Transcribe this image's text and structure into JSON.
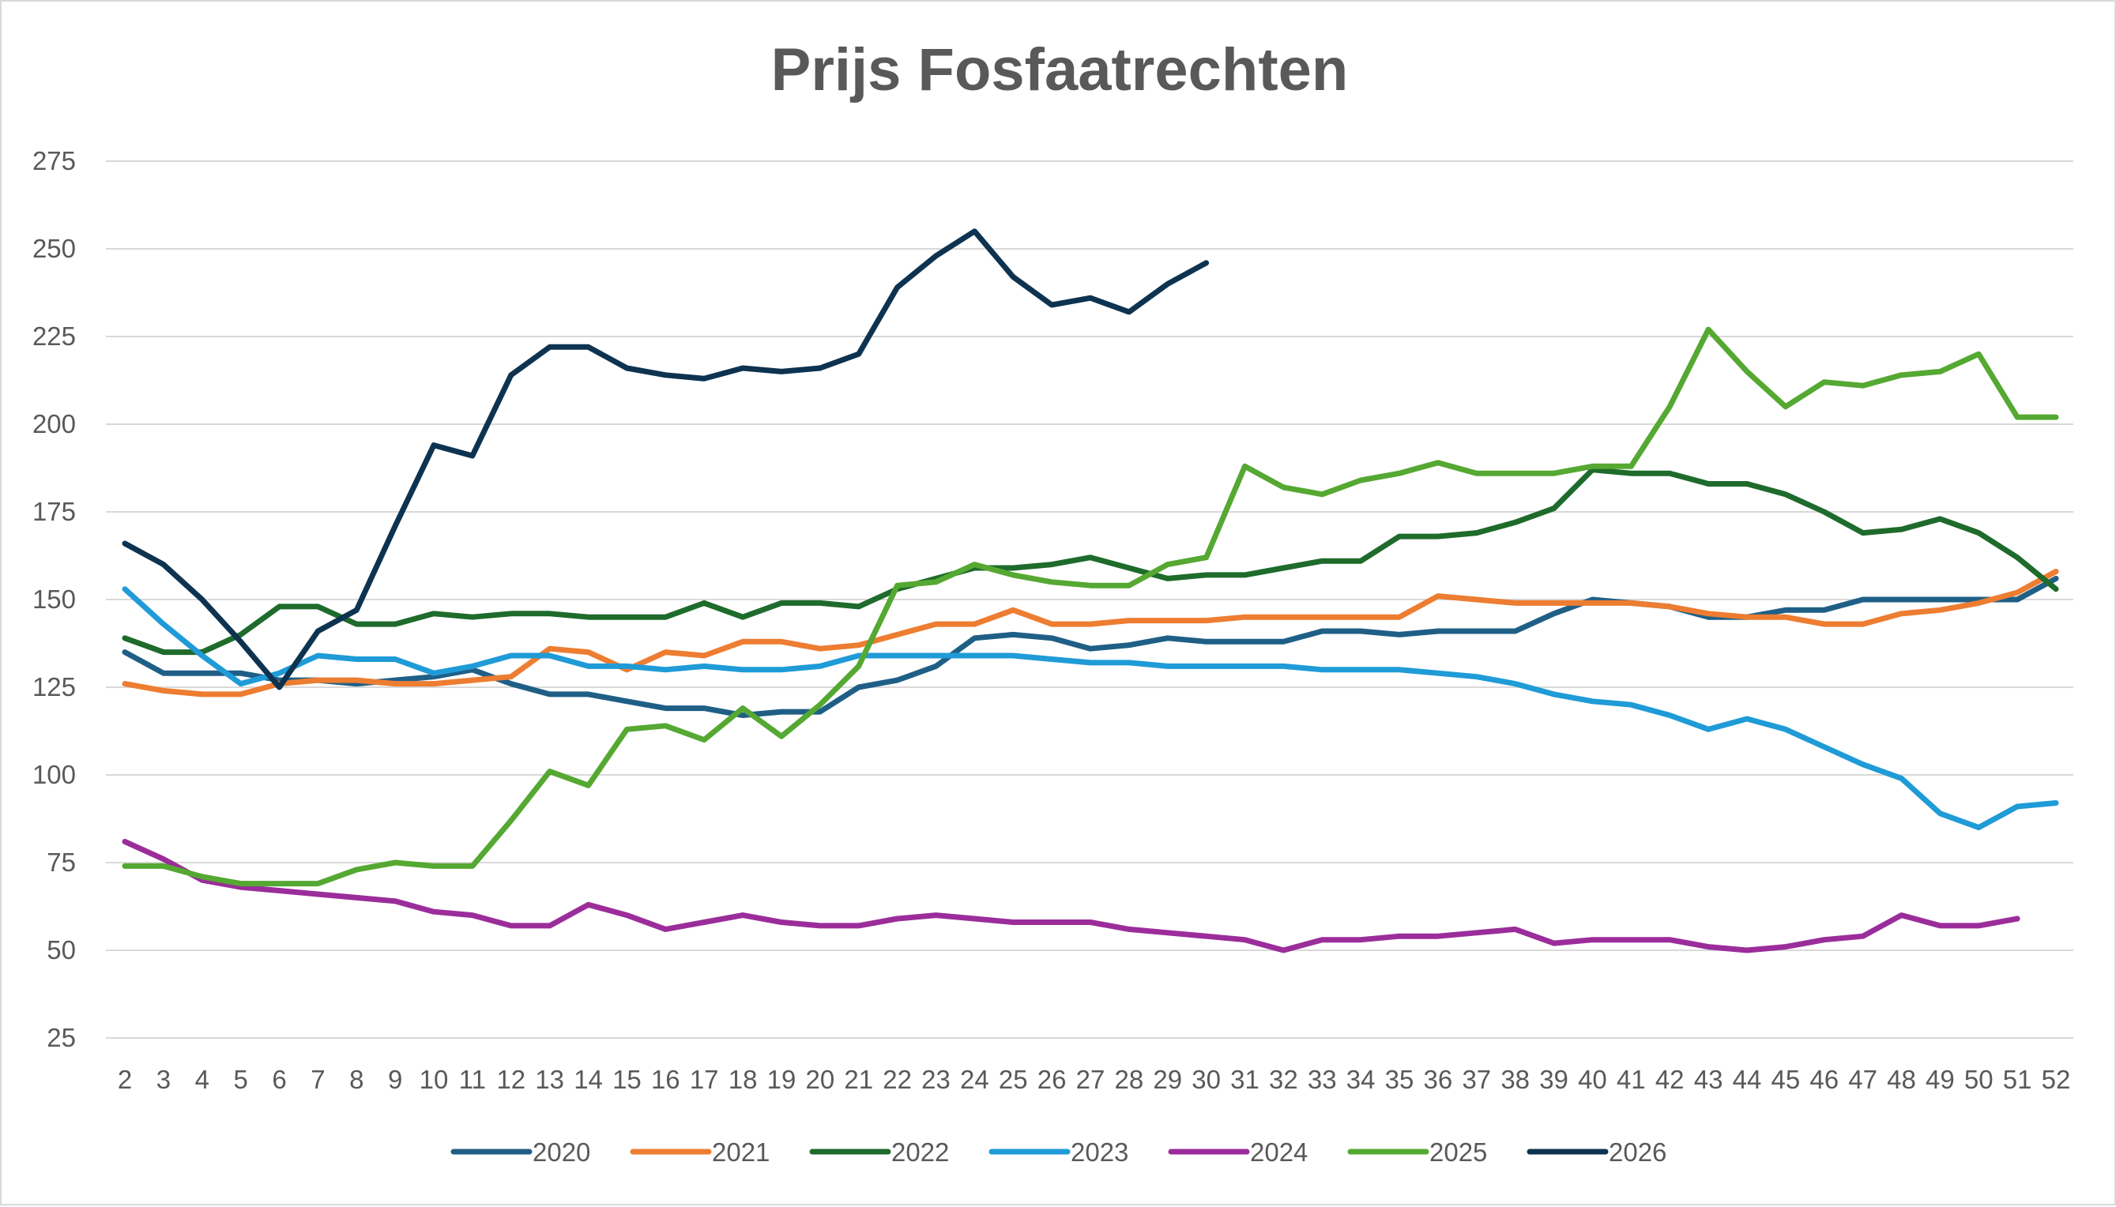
{
  "chart_data": {
    "type": "line",
    "title": "Prijs Fosfaatrechten",
    "xlabel": "",
    "ylabel": "",
    "x": [
      2,
      3,
      4,
      5,
      6,
      7,
      8,
      9,
      10,
      11,
      12,
      13,
      14,
      15,
      16,
      17,
      18,
      19,
      20,
      21,
      22,
      23,
      24,
      25,
      26,
      27,
      28,
      29,
      30,
      31,
      32,
      33,
      34,
      35,
      36,
      37,
      38,
      39,
      40,
      41,
      42,
      43,
      44,
      45,
      46,
      47,
      48,
      49,
      50,
      51,
      52
    ],
    "ylim": [
      25,
      275
    ],
    "yticks": [
      25,
      50,
      75,
      100,
      125,
      150,
      175,
      200,
      225,
      250,
      275
    ],
    "grid": true,
    "legend_position": "bottom",
    "series": [
      {
        "name": "2020",
        "color": "#1f5f86",
        "values": [
          135,
          129,
          129,
          129,
          127,
          127,
          126,
          127,
          128,
          130,
          126,
          123,
          123,
          121,
          119,
          119,
          117,
          118,
          118,
          125,
          127,
          131,
          139,
          140,
          139,
          136,
          137,
          139,
          138,
          138,
          138,
          141,
          141,
          140,
          141,
          141,
          141,
          146,
          150,
          149,
          148,
          145,
          145,
          147,
          147,
          150,
          150,
          150,
          150,
          150,
          156
        ]
      },
      {
        "name": "2021",
        "color": "#ed7d31",
        "values": [
          126,
          124,
          123,
          123,
          126,
          127,
          127,
          126,
          126,
          127,
          128,
          136,
          135,
          130,
          135,
          134,
          138,
          138,
          136,
          137,
          140,
          143,
          143,
          147,
          143,
          143,
          144,
          144,
          144,
          145,
          145,
          145,
          145,
          145,
          151,
          150,
          149,
          149,
          149,
          149,
          148,
          146,
          145,
          145,
          143,
          143,
          146,
          147,
          149,
          152,
          158
        ]
      },
      {
        "name": "2022",
        "color": "#1e6b2c",
        "values": [
          139,
          135,
          135,
          140,
          148,
          148,
          143,
          143,
          146,
          145,
          146,
          146,
          145,
          145,
          145,
          149,
          145,
          149,
          149,
          148,
          153,
          156,
          159,
          159,
          160,
          162,
          159,
          156,
          157,
          157,
          159,
          161,
          161,
          168,
          168,
          169,
          172,
          176,
          187,
          186,
          186,
          183,
          183,
          180,
          175,
          169,
          170,
          173,
          169,
          162,
          153
        ]
      },
      {
        "name": "2023",
        "color": "#1f9bd7",
        "values": [
          153,
          143,
          134,
          126,
          129,
          134,
          133,
          133,
          129,
          131,
          134,
          134,
          131,
          131,
          130,
          131,
          130,
          130,
          131,
          134,
          134,
          134,
          134,
          134,
          133,
          132,
          132,
          131,
          131,
          131,
          131,
          130,
          130,
          130,
          129,
          128,
          126,
          123,
          121,
          120,
          117,
          113,
          116,
          113,
          108,
          103,
          99,
          89,
          85,
          91,
          92
        ]
      },
      {
        "name": "2024",
        "color": "#9b2d9b",
        "values": [
          81,
          76,
          70,
          68,
          67,
          66,
          65,
          64,
          61,
          60,
          57,
          57,
          63,
          60,
          56,
          58,
          60,
          58,
          57,
          57,
          59,
          60,
          59,
          58,
          58,
          58,
          56,
          55,
          54,
          53,
          50,
          53,
          53,
          54,
          54,
          55,
          56,
          52,
          53,
          53,
          53,
          51,
          50,
          51,
          53,
          54,
          60,
          57,
          57,
          59,
          null
        ]
      },
      {
        "name": "2025",
        "color": "#55a832",
        "values": [
          74,
          74,
          71,
          69,
          69,
          69,
          73,
          75,
          74,
          74,
          87,
          101,
          97,
          113,
          114,
          110,
          119,
          111,
          120,
          131,
          154,
          155,
          160,
          157,
          155,
          154,
          154,
          160,
          162,
          188,
          182,
          180,
          184,
          186,
          189,
          186,
          186,
          186,
          188,
          188,
          205,
          227,
          215,
          205,
          212,
          211,
          214,
          215,
          220,
          202,
          202
        ]
      },
      {
        "name": "2026",
        "color": "#0d3350",
        "values": [
          166,
          160,
          150,
          138,
          125,
          141,
          147,
          171,
          194,
          191,
          214,
          222,
          222,
          216,
          214,
          213,
          216,
          215,
          216,
          220,
          239,
          248,
          255,
          242,
          234,
          236,
          232,
          240,
          246,
          null,
          null,
          null,
          null,
          null,
          null,
          null,
          null,
          null,
          null,
          null,
          null,
          null,
          null,
          null,
          null,
          null,
          null,
          null,
          null,
          null,
          null
        ]
      }
    ]
  }
}
